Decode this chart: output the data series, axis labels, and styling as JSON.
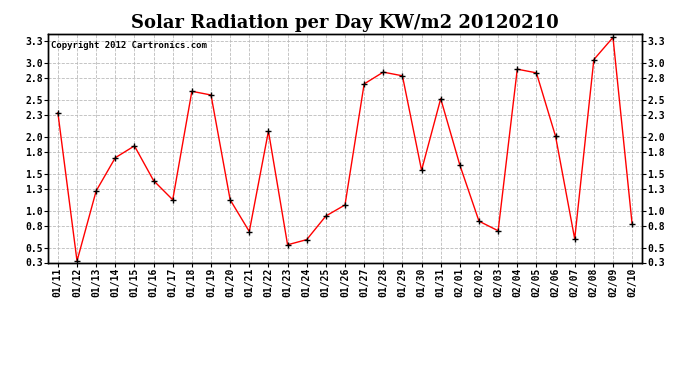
{
  "title": "Solar Radiation per Day KW/m2 20120210",
  "copyright_text": "Copyright 2012 Cartronics.com",
  "dates": [
    "01/11",
    "01/12",
    "01/13",
    "01/14",
    "01/15",
    "01/16",
    "01/17",
    "01/18",
    "01/19",
    "01/20",
    "01/21",
    "01/22",
    "01/23",
    "01/24",
    "01/25",
    "01/26",
    "01/27",
    "01/28",
    "01/29",
    "01/30",
    "01/31",
    "02/01",
    "02/02",
    "02/03",
    "02/04",
    "02/05",
    "02/06",
    "02/07",
    "02/08",
    "02/09",
    "02/10"
  ],
  "values": [
    2.33,
    0.32,
    1.27,
    1.72,
    1.88,
    1.41,
    1.15,
    2.62,
    2.57,
    1.15,
    0.72,
    2.08,
    0.54,
    0.61,
    0.93,
    1.08,
    2.72,
    2.88,
    2.83,
    1.55,
    2.52,
    1.62,
    0.86,
    0.73,
    2.92,
    2.87,
    2.01,
    0.62,
    3.05,
    3.35,
    0.82
  ],
  "line_color": "#ff0000",
  "marker_color": "#000000",
  "background_color": "#ffffff",
  "grid_color": "#bbbbbb",
  "ylim": [
    0.3,
    3.4
  ],
  "yticks": [
    0.3,
    0.5,
    0.8,
    1.0,
    1.3,
    1.5,
    1.8,
    2.0,
    2.3,
    2.5,
    2.8,
    3.0,
    3.3
  ],
  "title_fontsize": 13,
  "tick_fontsize": 7,
  "copyright_fontsize": 6.5
}
